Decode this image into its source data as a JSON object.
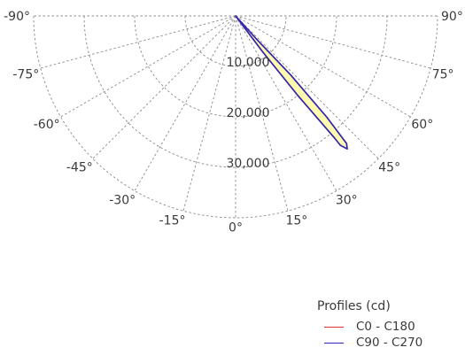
{
  "chart_data": {
    "type": "polar-area",
    "angle_unit": "degrees",
    "radial_unit": "cd",
    "angle_ticks": [
      -90,
      -75,
      -60,
      -45,
      -30,
      -15,
      0,
      15,
      30,
      45,
      60,
      75,
      90
    ],
    "angle_tick_labels": [
      "-90°",
      "-75°",
      "-60°",
      "-45°",
      "-30°",
      "-15°",
      "0°",
      "15°",
      "30°",
      "45°",
      "60°",
      "75°",
      "90°"
    ],
    "radial_ticks": [
      10000,
      20000,
      30000
    ],
    "radial_tick_labels": [
      "10,000",
      "20,000",
      "30,000"
    ],
    "radial_max": 40000,
    "grid": true,
    "legend": {
      "title": "Profiles (cd)",
      "position": "bottom-right",
      "entries": [
        {
          "label": "C0 - C180",
          "color": "#e03030"
        },
        {
          "label": "C90 - C270",
          "color": "#2b2bb8"
        }
      ]
    },
    "fill_color": "#fffcb0",
    "series": [
      {
        "name": "C0 - C180",
        "color": "#e03030",
        "points": [
          {
            "angle": 36,
            "value": 0
          },
          {
            "angle": 37,
            "value": 9000
          },
          {
            "angle": 38,
            "value": 20000
          },
          {
            "angle": 39,
            "value": 31000
          },
          {
            "angle": 39,
            "value": 33000
          },
          {
            "angle": 40,
            "value": 34400
          },
          {
            "angle": 41,
            "value": 33500
          },
          {
            "angle": 42,
            "value": 27000
          },
          {
            "angle": 43,
            "value": 16000
          },
          {
            "angle": 42,
            "value": 6000
          },
          {
            "angle": 40,
            "value": 0
          }
        ]
      },
      {
        "name": "C90 - C270",
        "color": "#2b2bb8",
        "points": [
          {
            "angle": 36,
            "value": 0
          },
          {
            "angle": 37,
            "value": 9000
          },
          {
            "angle": 38,
            "value": 20000
          },
          {
            "angle": 39,
            "value": 31000
          },
          {
            "angle": 39,
            "value": 33000
          },
          {
            "angle": 40,
            "value": 34400
          },
          {
            "angle": 41,
            "value": 33500
          },
          {
            "angle": 42,
            "value": 27000
          },
          {
            "angle": 43,
            "value": 16000
          },
          {
            "angle": 42,
            "value": 6000
          },
          {
            "angle": 40,
            "value": 0
          }
        ]
      }
    ]
  }
}
